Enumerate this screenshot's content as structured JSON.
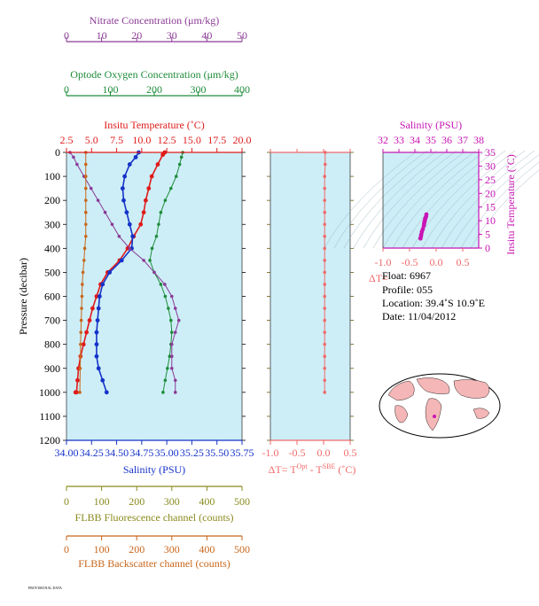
{
  "colors": {
    "nitrate": "#8b3a96",
    "oxygen": "#1e8c3a",
    "temperature": "#e01b1b",
    "salinity": "#1533c8",
    "fluorescence": "#8a8a1e",
    "backscatter": "#c8661b",
    "delta": "#f06a6a",
    "ts": "#c814b4",
    "plot_bg": "#cdeef7"
  },
  "info": {
    "float": "Float:  6967",
    "profile": "Profile:  055",
    "location": "Location:  39.4˚S  10.9˚E",
    "date": "Date:  11/04/2012"
  },
  "footer_text": "PROVISIONAL DATA",
  "chart_data": [
    {
      "id": "profile-panel",
      "type": "line",
      "ylabel": "Pressure (decibar)",
      "ylim": [
        1200,
        0
      ],
      "yticks": [
        "0",
        "100",
        "200",
        "300",
        "400",
        "500",
        "600",
        "700",
        "800",
        "900",
        "1000",
        "1100",
        "1200"
      ],
      "axes": {
        "nitrate": {
          "label": "Nitrate Concentration (μm/kg)",
          "ticks": [
            "0",
            "10",
            "20",
            "30",
            "40",
            "50"
          ],
          "range": [
            0,
            50
          ]
        },
        "oxygen": {
          "label": "Optode Oxygen Concentration (μm/kg)",
          "ticks": [
            "0",
            "100",
            "200",
            "300",
            "400"
          ],
          "range": [
            0,
            400
          ]
        },
        "temperature": {
          "label": "Insitu Temperature (˚C)",
          "ticks": [
            "2.5",
            "5.0",
            "7.5",
            "10.0",
            "12.5",
            "15.0",
            "17.5",
            "20.0"
          ],
          "range": [
            2.5,
            20
          ]
        },
        "salinity": {
          "label": "Salinity (PSU)",
          "ticks": [
            "34.00",
            "34.25",
            "34.50",
            "34.75",
            "35.00",
            "35.25",
            "35.50",
            "35.75"
          ],
          "range": [
            34.0,
            35.75
          ]
        },
        "fluorescence": {
          "label": "FLBB Fluorescence channel (counts)",
          "ticks": [
            "0",
            "100",
            "200",
            "300",
            "400",
            "500"
          ],
          "range": [
            0,
            500
          ]
        },
        "backscatter": {
          "label": "FLBB Backscatter channel (counts)",
          "ticks": [
            "0",
            "100",
            "200",
            "300",
            "400",
            "500"
          ],
          "range": [
            0,
            500
          ]
        }
      },
      "series": [
        {
          "name": "Insitu Temperature",
          "axis": "temperature",
          "x": [
            12.3,
            12.1,
            11.6,
            11.0,
            10.7,
            10.4,
            10.2,
            9.9,
            9.2,
            8.6,
            7.8,
            6.6,
            5.9,
            5.5,
            5.1,
            4.8,
            4.5,
            4.2,
            3.9,
            3.7,
            3.6,
            3.5,
            3.4
          ],
          "y": [
            0,
            10,
            50,
            100,
            150,
            200,
            250,
            300,
            350,
            400,
            450,
            500,
            550,
            600,
            650,
            700,
            750,
            800,
            850,
            900,
            950,
            1000,
            1000
          ]
        },
        {
          "name": "Salinity",
          "axis": "salinity",
          "x": [
            34.72,
            34.69,
            34.63,
            34.58,
            34.56,
            34.57,
            34.6,
            34.63,
            34.66,
            34.65,
            34.55,
            34.43,
            34.36,
            34.33,
            34.32,
            34.31,
            34.3,
            34.3,
            34.3,
            34.32,
            34.36,
            34.4
          ],
          "y": [
            0,
            20,
            50,
            100,
            150,
            200,
            250,
            300,
            350,
            400,
            450,
            500,
            550,
            600,
            650,
            700,
            750,
            800,
            850,
            900,
            950,
            1000
          ]
        },
        {
          "name": "Optode Oxygen",
          "axis": "oxygen",
          "x": [
            265,
            262,
            258,
            250,
            238,
            225,
            215,
            210,
            205,
            195,
            190,
            200,
            215,
            225,
            232,
            238,
            240,
            238,
            235,
            230,
            225,
            220
          ],
          "y": [
            0,
            20,
            50,
            100,
            150,
            200,
            250,
            300,
            350,
            400,
            450,
            500,
            550,
            600,
            650,
            700,
            750,
            800,
            850,
            900,
            950,
            1000
          ]
        },
        {
          "name": "Nitrate",
          "axis": "nitrate",
          "x": [
            1,
            2,
            3,
            5,
            7,
            9,
            11,
            13,
            15,
            18,
            22,
            25,
            28,
            30,
            31,
            32,
            31,
            30,
            30,
            30,
            31,
            31
          ],
          "y": [
            0,
            20,
            50,
            100,
            150,
            200,
            250,
            300,
            350,
            400,
            450,
            500,
            550,
            600,
            650,
            700,
            750,
            800,
            850,
            900,
            950,
            1000
          ]
        },
        {
          "name": "FLBB Backscatter",
          "axis": "backscatter",
          "x": [
            55,
            55,
            55,
            55,
            55,
            55,
            55,
            55,
            52,
            50,
            47,
            45,
            44,
            43,
            42,
            41,
            40,
            40,
            39,
            38
          ],
          "y": [
            0,
            50,
            100,
            150,
            200,
            250,
            300,
            350,
            400,
            450,
            500,
            550,
            600,
            650,
            700,
            750,
            800,
            850,
            900,
            1000
          ]
        }
      ]
    },
    {
      "id": "delta-panel",
      "type": "line",
      "xlabel": "ΔT= Tᴼᵖᵗ - Tˢᴮᴱ (˚C)",
      "xlabel_main": "ΔT= T",
      "xlabel_sup1": "Opt",
      "xlabel_mid": " - T",
      "xlabel_sup2": "SBE",
      "xlabel_end": " (˚C)",
      "xticks": [
        "-1.0",
        "-0.5",
        "0.0",
        "0.5"
      ],
      "xlim": [
        -1.0,
        0.5
      ],
      "ylim": [
        1200,
        0
      ],
      "series": [
        {
          "name": "ΔT",
          "x": [
            0.03,
            0.03,
            0.02,
            0.02,
            0.02,
            0.02,
            0.02,
            0.02,
            0.02,
            0.02,
            0.02,
            0.02,
            0.02,
            0.02,
            0.02,
            0.02,
            0.02,
            0.02,
            0.02,
            0.02,
            0.02
          ],
          "y": [
            0,
            50,
            100,
            150,
            200,
            250,
            300,
            350,
            400,
            450,
            500,
            550,
            600,
            650,
            700,
            750,
            800,
            850,
            900,
            950,
            1000
          ]
        }
      ]
    },
    {
      "id": "ts-panel",
      "type": "scatter",
      "xlabel": "Salinity (PSU)",
      "ylabel": "Insitu Temperature (˚C)",
      "xticks": [
        "32",
        "33",
        "34",
        "35",
        "36",
        "37",
        "38"
      ],
      "yticks": [
        "0",
        "5",
        "10",
        "15",
        "20",
        "25",
        "30",
        "35"
      ],
      "xlim": [
        32,
        38
      ],
      "ylim": [
        0,
        35
      ],
      "bottom_ticks": [
        "-1.0",
        "-0.5",
        "0.0",
        "0.5"
      ],
      "bottom_label": "ΔT=",
      "series": [
        {
          "name": "T-S",
          "x": [
            34.72,
            34.7,
            34.66,
            34.64,
            34.62,
            34.6,
            34.58,
            34.56,
            34.5,
            34.44,
            34.4,
            34.38,
            34.35
          ],
          "y": [
            12.3,
            11.5,
            11.0,
            10.5,
            10.0,
            9.6,
            9.0,
            8.2,
            7.0,
            6.0,
            5.0,
            4.3,
            3.5
          ]
        }
      ]
    }
  ]
}
